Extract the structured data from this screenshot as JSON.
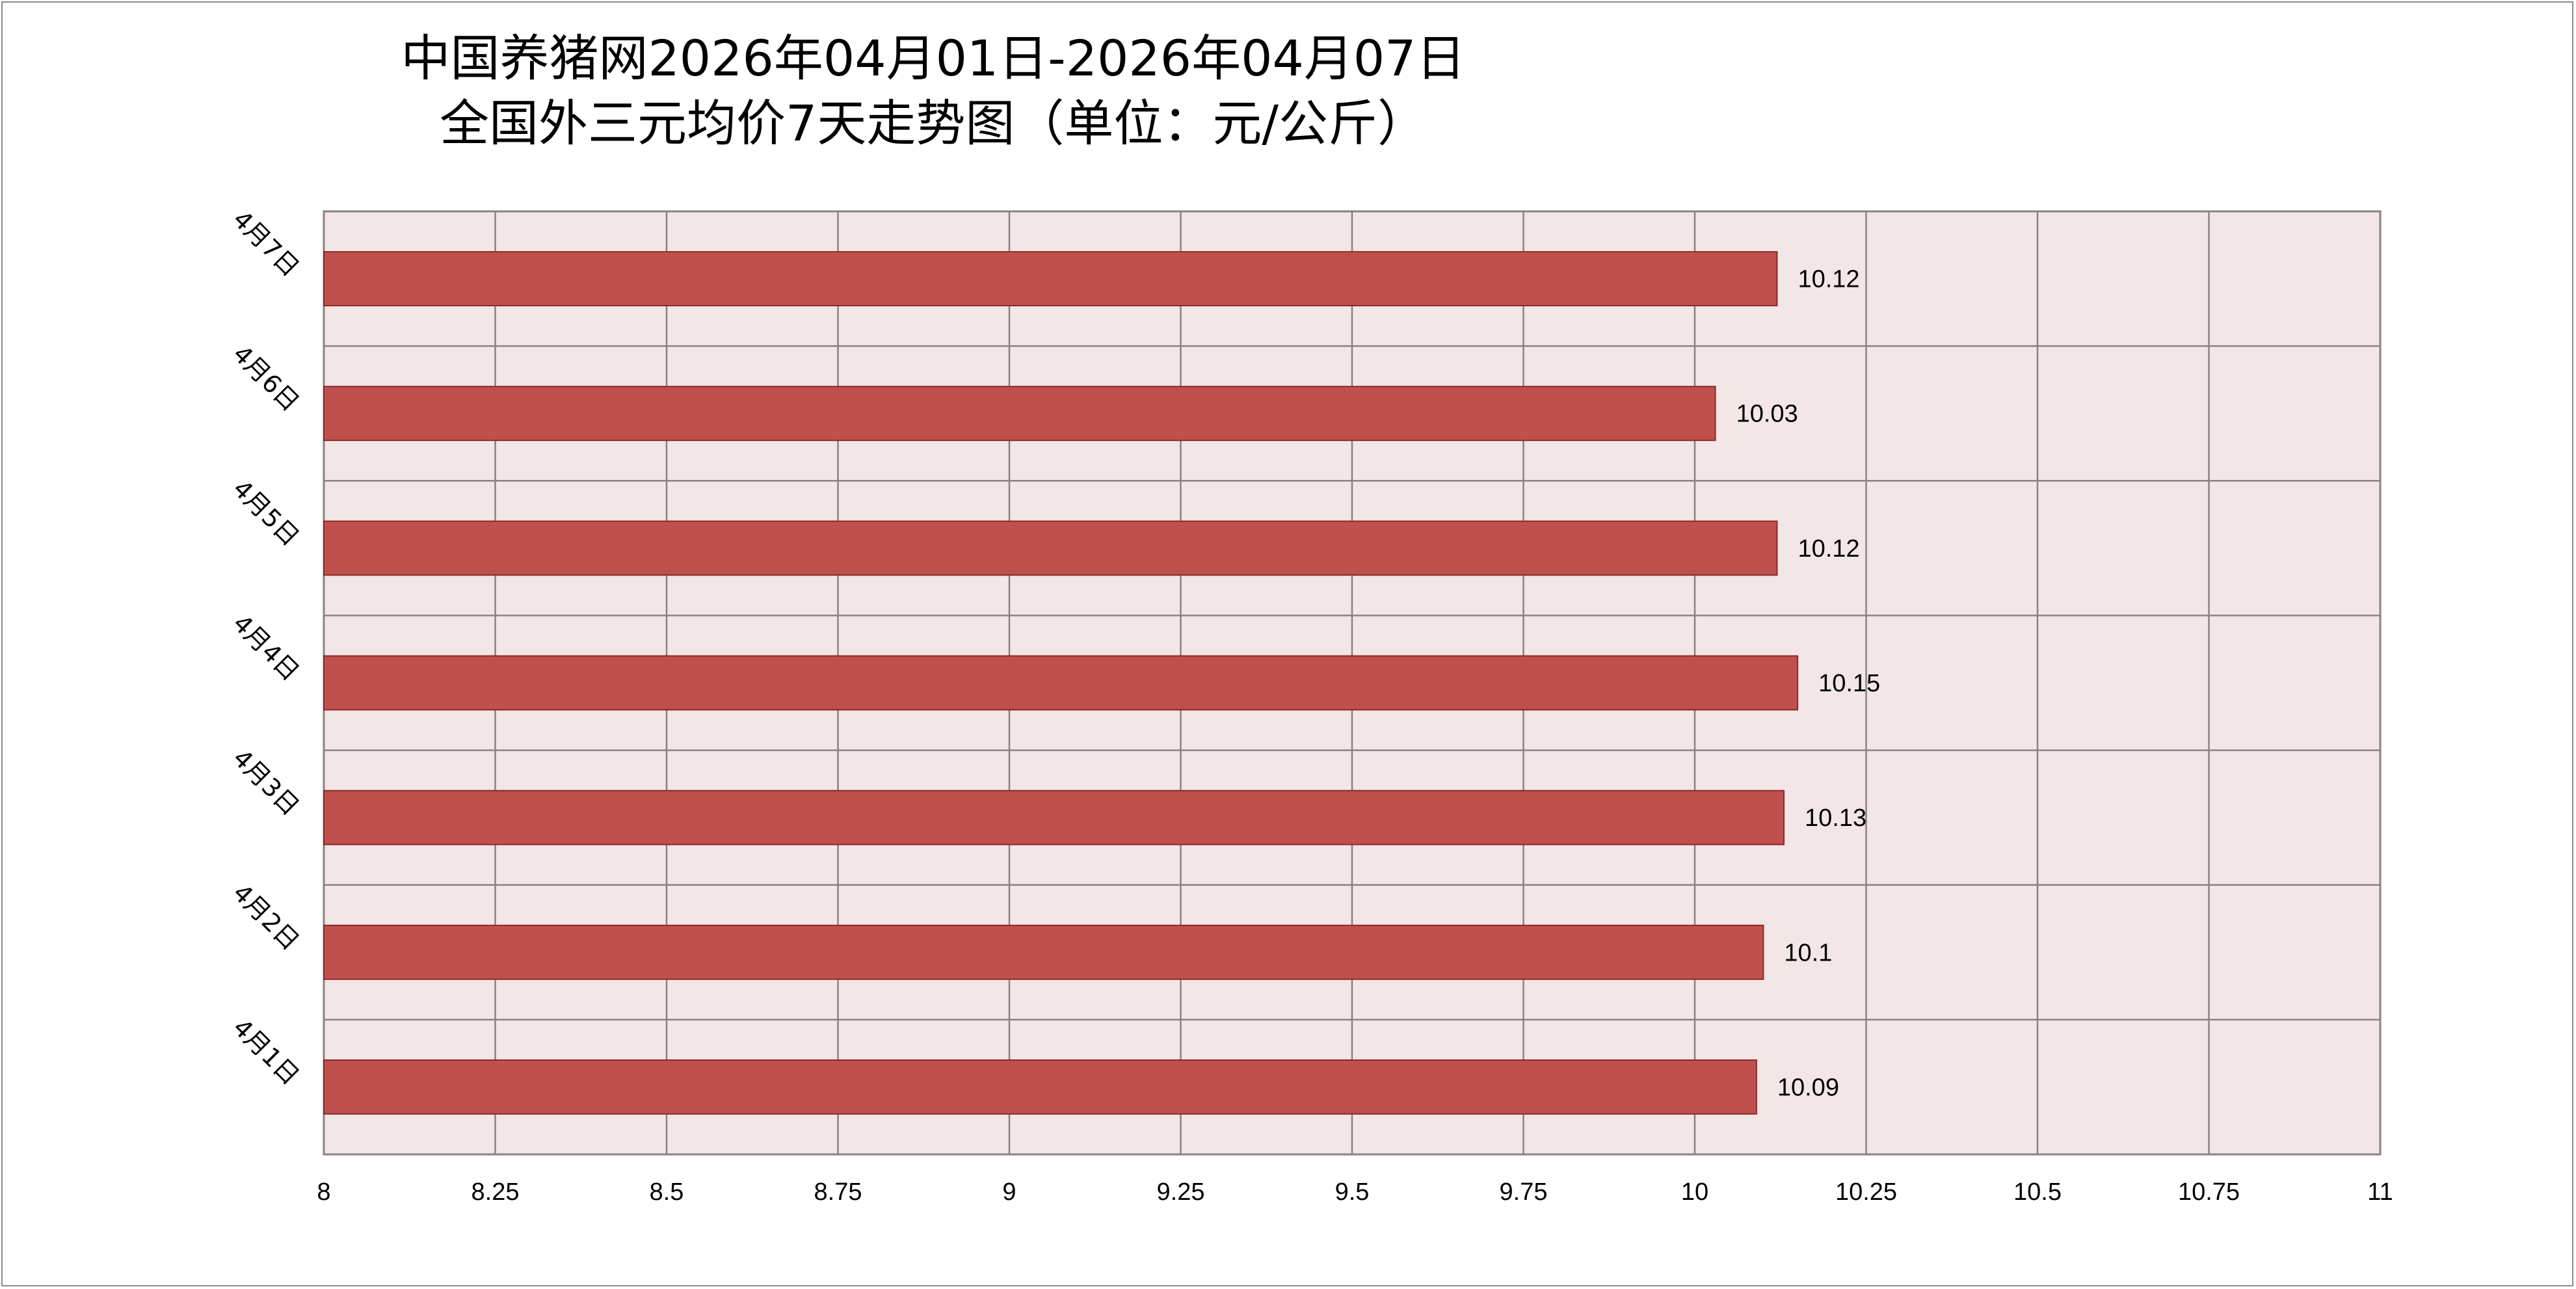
{
  "chart_data": {
    "type": "bar",
    "orientation": "horizontal",
    "title_line1": "中国养猪网2026年04月01日-2026年04月07日",
    "title_line2": "全国外三元均价7天走势图（单位：元/公斤）",
    "categories": [
      "4月7日",
      "4月6日",
      "4月5日",
      "4月4日",
      "4月3日",
      "4月2日",
      "4月1日"
    ],
    "values": [
      10.12,
      10.03,
      10.12,
      10.15,
      10.13,
      10.1,
      10.09
    ],
    "data_labels": [
      "10.12",
      "10.03",
      "10.12",
      "10.15",
      "10.13",
      "10.1",
      "10.09"
    ],
    "x_ticks": [
      "8",
      "8.25",
      "8.5",
      "8.75",
      "9",
      "9.25",
      "9.5",
      "9.75",
      "10",
      "10.25",
      "10.5",
      "10.75",
      "11"
    ],
    "xlim": [
      8,
      11
    ],
    "xlabel": "",
    "ylabel": "",
    "grid": true,
    "legend": "none",
    "colors": {
      "bar_fill": "#c0504d",
      "bar_stroke": "#8b2a28",
      "plot_background": "#f2e6e6",
      "grid_line": "#8c8080"
    }
  }
}
